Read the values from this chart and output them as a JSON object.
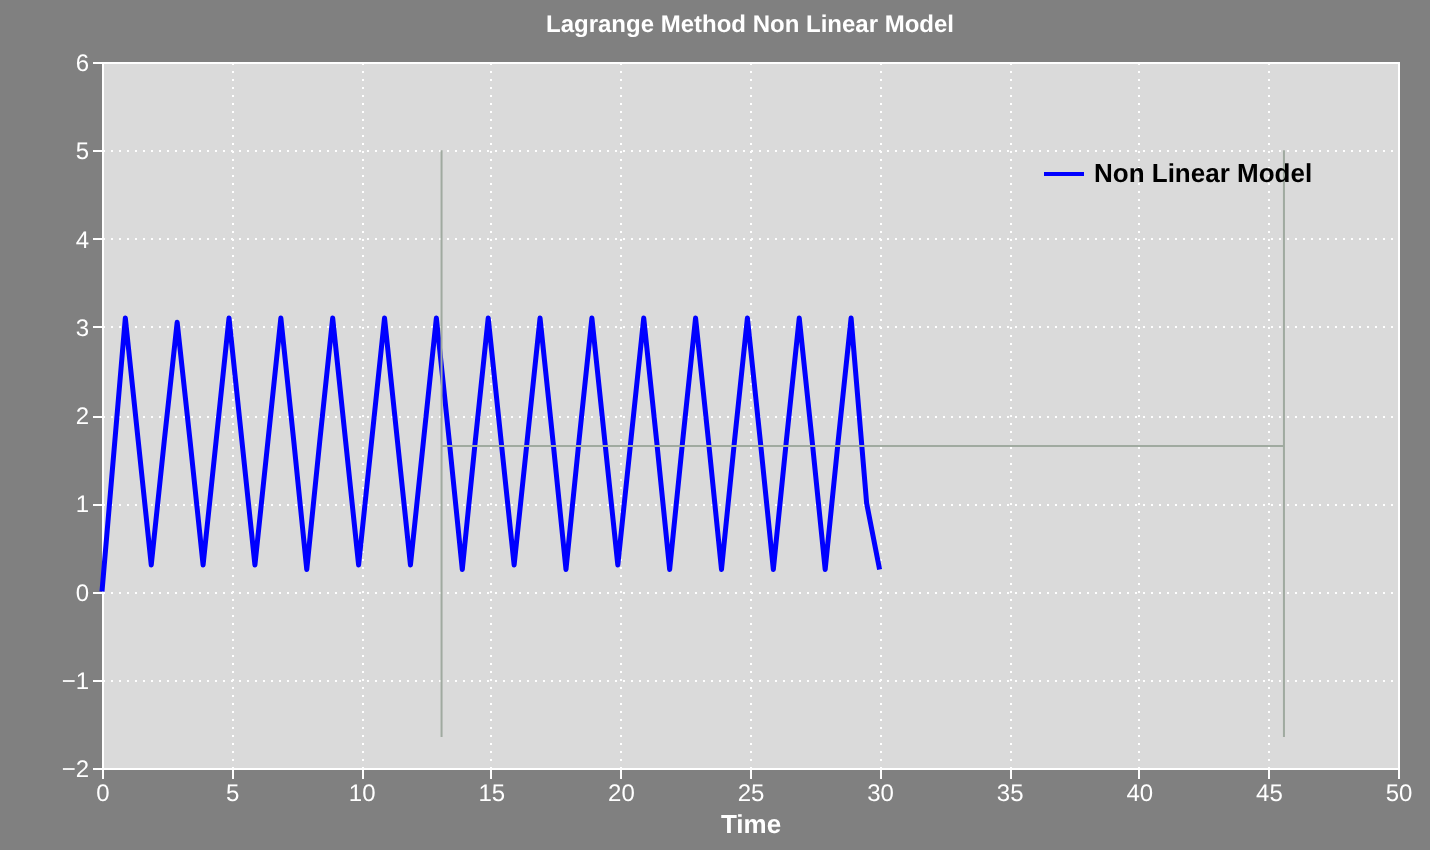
{
  "chart_data": {
    "type": "line",
    "title": "Lagrange Method Non Linear Model",
    "xlabel": "Time",
    "xlim": [
      0,
      50
    ],
    "xticks": [
      0,
      5,
      10,
      15,
      20,
      25,
      30,
      35,
      40,
      45,
      50
    ],
    "ylim": [
      -2,
      6
    ],
    "yticks": [
      -2,
      -1,
      0,
      1,
      2,
      3,
      4,
      5,
      6
    ],
    "grid": true,
    "legend": "top right",
    "marker": "none",
    "line_style": "solid",
    "series": [
      {
        "name": "Non Linear Model",
        "color": "#0000ff",
        "x": [
          0,
          0.9,
          1.4,
          1.9,
          2.4,
          2.9,
          3.4,
          3.9,
          4.4,
          4.9,
          5.4,
          5.9,
          6.4,
          6.9,
          7.4,
          7.9,
          8.4,
          8.9,
          9.4,
          9.9,
          10.4,
          10.9,
          11.4,
          11.9,
          12.4,
          12.9,
          13.4,
          13.9,
          14.4,
          14.9,
          15.4,
          15.9,
          16.4,
          16.9,
          17.4,
          17.9,
          18.4,
          18.9,
          19.4,
          19.9,
          20.4,
          20.9,
          21.4,
          21.9,
          22.4,
          22.9,
          23.4,
          23.9,
          24.4,
          24.9,
          25.4,
          25.9,
          26.4,
          26.9,
          27.4,
          27.9,
          28.4,
          28.9,
          29.5,
          30
        ],
        "values": [
          0,
          3.1,
          1.7,
          0.3,
          1.7,
          3.05,
          1.7,
          0.3,
          1.7,
          3.1,
          1.7,
          0.3,
          1.7,
          3.1,
          1.7,
          0.25,
          1.7,
          3.1,
          1.7,
          0.3,
          1.7,
          3.1,
          1.7,
          0.3,
          1.7,
          3.1,
          1.7,
          0.25,
          1.7,
          3.1,
          1.7,
          0.3,
          1.7,
          3.1,
          1.7,
          0.25,
          1.7,
          3.1,
          1.7,
          0.3,
          1.7,
          3.1,
          1.7,
          0.25,
          1.7,
          3.1,
          1.7,
          0.25,
          1.7,
          3.1,
          1.7,
          0.25,
          1.7,
          3.1,
          1.7,
          0.25,
          1.7,
          3.1,
          1.0,
          0.25
        ]
      },
      {
        "color": "#a0aaa0",
        "x": [
          13.1,
          13.1
        ],
        "values": [
          -1.65,
          5
        ]
      },
      {
        "color": "#a0aaa0",
        "x": [
          45.6,
          45.6
        ],
        "values": [
          -1.65,
          5
        ]
      },
      {
        "color": "#a0aaa0",
        "x": [
          13.1,
          45.6
        ],
        "values": [
          1.65,
          1.65
        ]
      }
    ]
  }
}
